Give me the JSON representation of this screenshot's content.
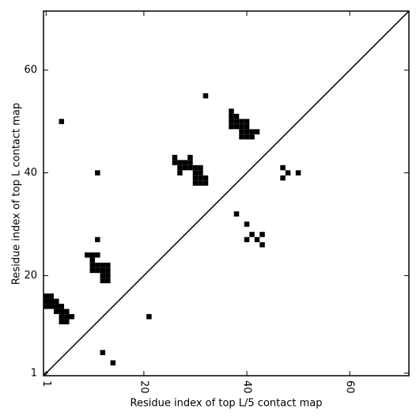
{
  "chart_data": {
    "type": "scatter",
    "marker": "square",
    "color": "#000000",
    "xlabel": "Residue index of top L/5 contact map",
    "ylabel": "Residue index of top L contact map",
    "xlim": [
      0.5,
      71.5
    ],
    "ylim": [
      0.5,
      71.5
    ],
    "xticks": [
      1,
      20,
      40,
      60
    ],
    "yticks": [
      1,
      20,
      40,
      60
    ],
    "x": [
      4,
      32,
      11,
      11,
      21,
      12,
      14,
      38,
      40,
      40,
      41,
      42,
      43,
      43,
      47,
      48,
      47,
      50,
      1,
      2,
      1,
      2,
      3,
      1,
      2,
      3,
      4,
      3,
      4,
      5,
      4,
      5,
      6,
      4,
      5,
      9,
      10,
      11,
      10,
      10,
      11,
      12,
      13,
      10,
      11,
      12,
      13,
      12,
      13,
      12,
      13,
      26,
      29,
      26,
      27,
      28,
      29,
      27,
      28,
      29,
      30,
      31,
      27,
      30,
      31,
      30,
      31,
      32,
      30,
      31,
      32,
      37,
      37,
      38,
      37,
      38,
      39,
      40,
      37,
      38,
      39,
      40,
      39,
      40,
      41,
      42,
      39,
      40,
      41
    ],
    "y": [
      50,
      55,
      40,
      27,
      12,
      5,
      3,
      32,
      30,
      27,
      28,
      27,
      28,
      26,
      41,
      40,
      39,
      40,
      16,
      16,
      15,
      15,
      15,
      14,
      14,
      14,
      14,
      13,
      13,
      13,
      12,
      12,
      12,
      11,
      11,
      24,
      24,
      24,
      23,
      22,
      22,
      22,
      22,
      21,
      21,
      21,
      21,
      20,
      20,
      19,
      19,
      43,
      43,
      42,
      42,
      42,
      42,
      41,
      41,
      41,
      41,
      41,
      40,
      40,
      40,
      39,
      39,
      39,
      38,
      38,
      38,
      52,
      51,
      51,
      50,
      50,
      50,
      50,
      49,
      49,
      49,
      49,
      48,
      48,
      48,
      48,
      47,
      47,
      47
    ]
  }
}
